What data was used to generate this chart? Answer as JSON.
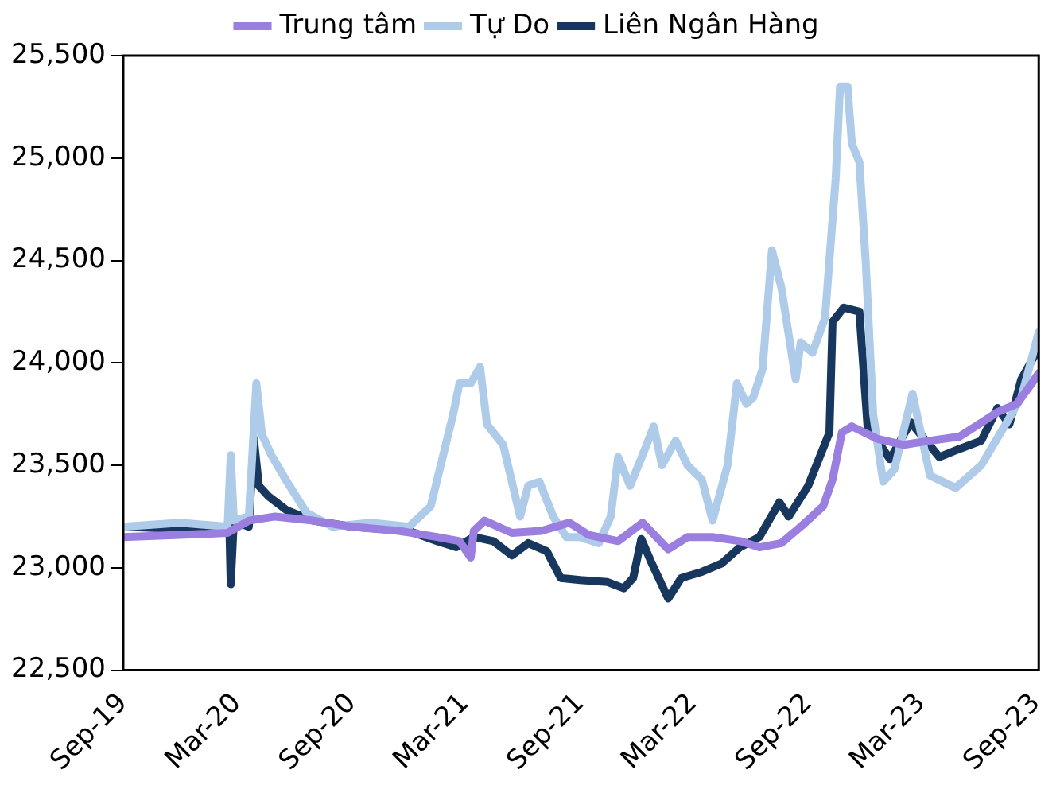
{
  "chart_data": {
    "type": "line",
    "legend": "top",
    "grid": false,
    "marker": "none",
    "line_style": "solid",
    "ylim": [
      22500,
      25500
    ],
    "yticks": [
      {
        "value": 22500,
        "label": "22,500"
      },
      {
        "value": 23000,
        "label": "23,000"
      },
      {
        "value": 23500,
        "label": "23,500"
      },
      {
        "value": 24000,
        "label": "24,000"
      },
      {
        "value": 24500,
        "label": "24,500"
      },
      {
        "value": 25000,
        "label": "25,000"
      },
      {
        "value": 25500,
        "label": "25,500"
      }
    ],
    "xlim": [
      "2019-09-01",
      "2023-09-05"
    ],
    "xticks": [
      {
        "value": "2019-09-01",
        "label": "Sep-19"
      },
      {
        "value": "2020-03-01",
        "label": "Mar-20"
      },
      {
        "value": "2020-09-01",
        "label": "Sep-20"
      },
      {
        "value": "2021-03-01",
        "label": "Mar-21"
      },
      {
        "value": "2021-09-01",
        "label": "Sep-21"
      },
      {
        "value": "2022-03-01",
        "label": "Mar-22"
      },
      {
        "value": "2022-09-01",
        "label": "Sep-22"
      },
      {
        "value": "2023-03-01",
        "label": "Mar-23"
      },
      {
        "value": "2023-09-01",
        "label": "Sep-23"
      }
    ],
    "series": [
      {
        "name": "Trung tâm",
        "color": "#9b7fe0",
        "x": [
          "2019-09-01",
          "2019-12-01",
          "2020-02-15",
          "2020-03-20",
          "2020-05-01",
          "2020-07-01",
          "2020-09-01",
          "2020-11-15",
          "2021-01-15",
          "2021-02-20",
          "2021-03-10",
          "2021-03-15",
          "2021-04-01",
          "2021-05-15",
          "2021-07-01",
          "2021-08-15",
          "2021-09-15",
          "2021-11-01",
          "2021-12-10",
          "2022-01-20",
          "2022-02-20",
          "2022-04-01",
          "2022-05-15",
          "2022-06-15",
          "2022-07-20",
          "2022-08-20",
          "2022-09-25",
          "2022-10-10",
          "2022-10-25",
          "2022-11-10",
          "2022-12-20",
          "2023-02-01",
          "2023-03-15",
          "2023-05-01",
          "2023-06-01",
          "2023-07-01",
          "2023-08-01",
          "2023-08-25",
          "2023-09-05"
        ],
        "values": [
          23150,
          23160,
          23170,
          23230,
          23250,
          23230,
          23200,
          23180,
          23150,
          23130,
          23050,
          23180,
          23230,
          23170,
          23180,
          23220,
          23160,
          23130,
          23220,
          23090,
          23150,
          23150,
          23130,
          23100,
          23120,
          23200,
          23300,
          23430,
          23660,
          23690,
          23630,
          23600,
          23620,
          23640,
          23700,
          23760,
          23800,
          23900,
          23950
        ]
      },
      {
        "name": "Tự Do",
        "color": "#aecbea",
        "x": [
          "2019-09-01",
          "2019-12-01",
          "2020-02-15",
          "2020-02-20",
          "2020-02-25",
          "2020-03-20",
          "2020-04-01",
          "2020-04-10",
          "2020-04-25",
          "2020-05-20",
          "2020-06-20",
          "2020-08-01",
          "2020-10-01",
          "2020-12-01",
          "2021-01-05",
          "2021-01-25",
          "2021-02-10",
          "2021-02-20",
          "2021-03-10",
          "2021-03-25",
          "2021-04-05",
          "2021-05-01",
          "2021-05-28",
          "2021-06-10",
          "2021-06-28",
          "2021-07-20",
          "2021-08-10",
          "2021-09-01",
          "2021-10-01",
          "2021-10-20",
          "2021-11-01",
          "2021-11-20",
          "2021-12-10",
          "2021-12-28",
          "2022-01-10",
          "2022-02-01",
          "2022-02-20",
          "2022-03-15",
          "2022-04-01",
          "2022-04-25",
          "2022-05-10",
          "2022-05-25",
          "2022-06-05",
          "2022-06-20",
          "2022-07-05",
          "2022-07-20",
          "2022-08-12",
          "2022-08-20",
          "2022-09-08",
          "2022-09-28",
          "2022-10-15",
          "2022-10-22",
          "2022-11-03",
          "2022-11-10",
          "2022-11-22",
          "2022-12-02",
          "2022-12-14",
          "2022-12-30",
          "2023-01-17",
          "2023-02-15",
          "2023-03-15",
          "2023-04-25",
          "2023-06-05",
          "2023-07-12",
          "2023-08-08",
          "2023-09-05"
        ],
        "values": [
          23200,
          23220,
          23200,
          23550,
          23230,
          23250,
          23900,
          23650,
          23550,
          23420,
          23270,
          23200,
          23220,
          23200,
          23300,
          23550,
          23750,
          23900,
          23900,
          23980,
          23700,
          23600,
          23250,
          23400,
          23420,
          23250,
          23150,
          23150,
          23120,
          23250,
          23540,
          23400,
          23550,
          23690,
          23500,
          23620,
          23500,
          23430,
          23230,
          23500,
          23900,
          23800,
          23830,
          23970,
          24550,
          24370,
          23920,
          24100,
          24050,
          24220,
          24900,
          25350,
          25350,
          25070,
          24980,
          24500,
          23750,
          23420,
          23480,
          23850,
          23450,
          23390,
          23500,
          23690,
          23830,
          24150
        ]
      },
      {
        "name": "Liên Ngân Hàng",
        "color": "#17375e",
        "x": [
          "2019-09-01",
          "2019-12-01",
          "2020-01-15",
          "2020-02-18",
          "2020-02-20",
          "2020-02-25",
          "2020-03-20",
          "2020-03-28",
          "2020-04-05",
          "2020-04-20",
          "2020-05-20",
          "2020-07-01",
          "2020-09-01",
          "2020-12-01",
          "2021-01-15",
          "2021-02-15",
          "2021-03-15",
          "2021-04-15",
          "2021-05-15",
          "2021-06-10",
          "2021-07-10",
          "2021-08-01",
          "2021-09-01",
          "2021-10-15",
          "2021-11-10",
          "2021-11-25",
          "2021-12-08",
          "2021-12-25",
          "2022-01-20",
          "2022-02-10",
          "2022-03-15",
          "2022-04-15",
          "2022-05-15",
          "2022-06-15",
          "2022-07-17",
          "2022-08-01",
          "2022-09-01",
          "2022-10-05",
          "2022-10-10",
          "2022-10-28",
          "2022-11-22",
          "2022-12-05",
          "2023-01-10",
          "2023-02-12",
          "2023-03-30",
          "2023-05-01",
          "2023-06-05",
          "2023-07-01",
          "2023-07-20",
          "2023-08-08",
          "2023-09-01"
        ],
        "values": [
          23200,
          23190,
          23170,
          23180,
          22920,
          23230,
          23200,
          23630,
          23400,
          23350,
          23280,
          23230,
          23200,
          23180,
          23130,
          23100,
          23150,
          23130,
          23060,
          23120,
          23080,
          22950,
          22940,
          22930,
          22900,
          22950,
          23140,
          23020,
          22850,
          22950,
          22980,
          23020,
          23100,
          23150,
          23320,
          23250,
          23400,
          23660,
          24200,
          24270,
          24250,
          23690,
          23530,
          23710,
          23540,
          23580,
          23620,
          23780,
          23700,
          23920,
          24050
        ]
      }
    ]
  }
}
